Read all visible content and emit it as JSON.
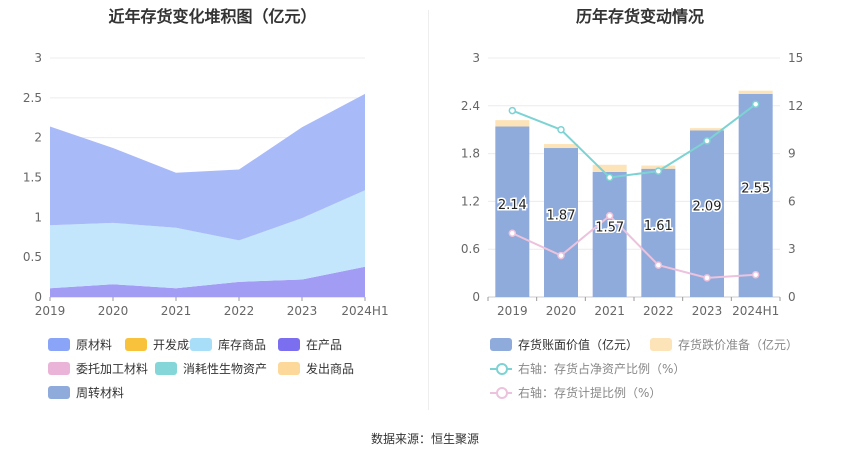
{
  "titles": {
    "left": "近年存货变化堆积图（亿元）",
    "right": "历年存货变动情况"
  },
  "source": "数据来源：恒生聚源",
  "chart_data": [
    {
      "type": "area",
      "title": "近年存货变化堆积图（亿元）",
      "stacked": true,
      "categories": [
        "2019",
        "2020",
        "2021",
        "2022",
        "2023",
        "2024H1"
      ],
      "y_ticks": [
        "0",
        "0.5",
        "1",
        "1.5",
        "2",
        "2.5",
        "3"
      ],
      "ylim": [
        0,
        3
      ],
      "grid": true,
      "legend_position": "bottom",
      "series": [
        {
          "name": "在产品",
          "color": "#a39cf4",
          "values": [
            0.11,
            0.16,
            0.11,
            0.19,
            0.22,
            0.38
          ]
        },
        {
          "name": "库存商品",
          "color": "#c3e6fd",
          "values": [
            0.79,
            0.77,
            0.76,
            0.52,
            0.77,
            0.96
          ]
        },
        {
          "name": "原材料",
          "color": "#a9baf8",
          "values": [
            1.24,
            0.94,
            0.69,
            0.89,
            1.14,
            1.21
          ]
        }
      ],
      "legend": [
        {
          "name": "原材料",
          "color": "#8aa4f7"
        },
        {
          "name": "开发成本",
          "color": "#f9c23c"
        },
        {
          "name": "库存商品",
          "color": "#a9def9"
        },
        {
          "name": "在产品",
          "color": "#7b6ff0"
        },
        {
          "name": "委托加工材料",
          "color": "#eab4d8"
        },
        {
          "name": "消耗性生物资产",
          "color": "#84d6d8"
        },
        {
          "name": "发出商品",
          "color": "#fcd89a"
        },
        {
          "name": "周转材料",
          "color": "#8fabdb"
        }
      ]
    },
    {
      "type": "bar",
      "title": "历年存货变动情况",
      "stacked": true,
      "categories": [
        "2019",
        "2020",
        "2021",
        "2022",
        "2023",
        "2024H1"
      ],
      "y_left_ticks": [
        "0",
        "0.6",
        "1.2",
        "1.8",
        "2.4",
        "3"
      ],
      "y_right_ticks": [
        "0",
        "3",
        "6",
        "9",
        "12",
        "15"
      ],
      "ylim_left": [
        0,
        3
      ],
      "ylim_right": [
        0,
        15
      ],
      "grid": true,
      "legend_position": "bottom",
      "series": [
        {
          "name": "存货账面价值（亿元）",
          "color": "#8fabdb",
          "axis": "left",
          "values": [
            2.14,
            1.87,
            1.57,
            1.61,
            2.09,
            2.55
          ],
          "labels": [
            "2.14",
            "1.87",
            "1.57",
            "1.61",
            "2.09",
            "2.55"
          ]
        },
        {
          "name": "存货跌价准备（亿元）",
          "color": "#fde3b8",
          "axis": "left",
          "values": [
            0.08,
            0.05,
            0.09,
            0.04,
            0.03,
            0.04
          ]
        }
      ],
      "lines": [
        {
          "name": "右轴：存货占净资产比例（%）",
          "color": "#7dd3d3",
          "axis": "right",
          "values": [
            11.7,
            10.5,
            7.5,
            7.9,
            9.8,
            12.1
          ]
        },
        {
          "name": "右轴：存货计提比例（%）",
          "color": "#ecc2dc",
          "axis": "right",
          "values": [
            4.0,
            2.6,
            5.1,
            2.0,
            1.2,
            1.4
          ]
        }
      ]
    }
  ]
}
